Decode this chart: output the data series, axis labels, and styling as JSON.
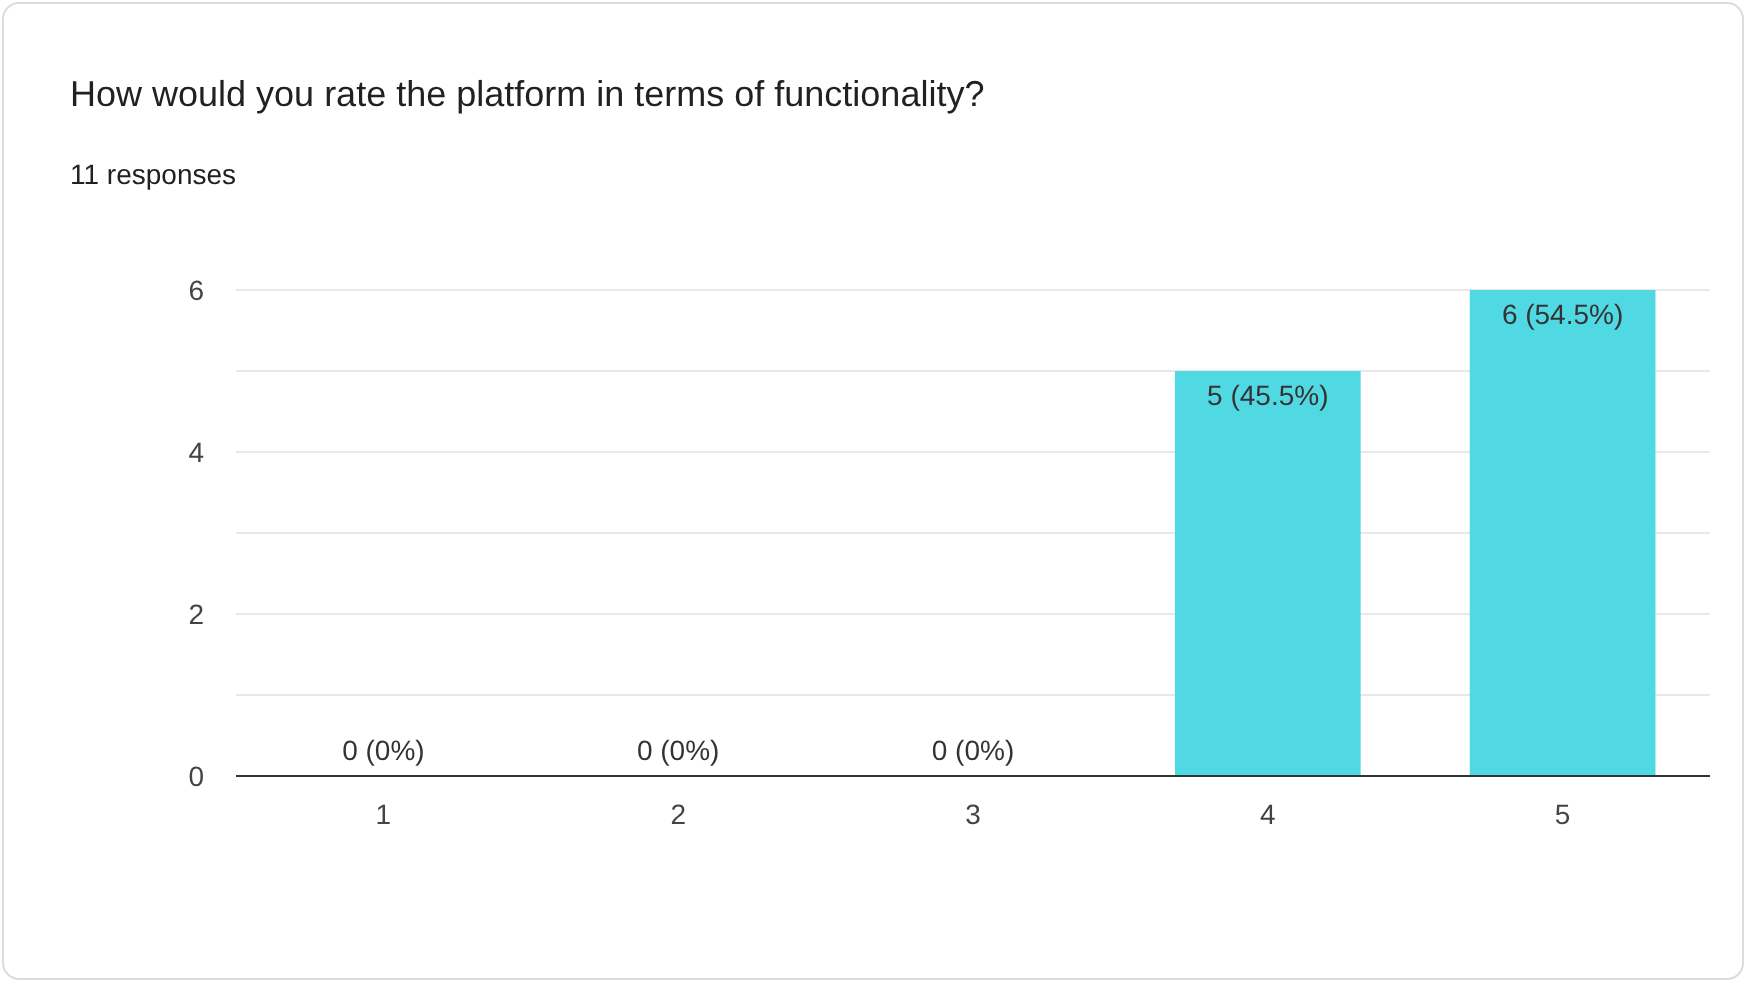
{
  "chart_data": {
    "type": "bar",
    "title": "How would you rate the platform in terms of functionality?",
    "subtitle": "11 responses",
    "categories": [
      "1",
      "2",
      "3",
      "4",
      "5"
    ],
    "values": [
      0,
      0,
      0,
      5,
      6
    ],
    "color": "#51d9e3",
    "value_labels": [
      "0 (0%)",
      "0 (0%)",
      "0 (0%)",
      "5 (45.5%)",
      "6 (54.5%)"
    ],
    "ylim": [
      0,
      6
    ],
    "yticks": [
      0,
      {
        "value": 1,
        "label": null
      },
      2,
      {
        "value": 3,
        "label": null
      },
      4,
      {
        "value": 5,
        "label": null
      },
      6
    ],
    "grid": true
  }
}
